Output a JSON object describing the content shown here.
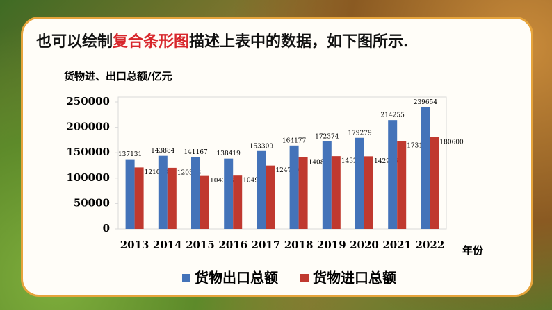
{
  "heading": {
    "parts": [
      "也可以绘制",
      "复合条形图",
      "描述上表中的数据，如下图所示."
    ]
  },
  "chart_data": {
    "type": "bar",
    "y_label": "货物进、出口总额/亿元",
    "x_label": "年份",
    "categories": [
      "2013",
      "2014",
      "2015",
      "2016",
      "2017",
      "2018",
      "2019",
      "2020",
      "2021",
      "2022"
    ],
    "series": [
      {
        "name": "货物出口总额",
        "color": "#4473b9",
        "values": [
          137131,
          143884,
          141167,
          138419,
          153309,
          164177,
          172374,
          179279,
          214255,
          239654
        ]
      },
      {
        "name": "货物进口总额",
        "color": "#c0392f",
        "values": [
          121038,
          120358,
          104336,
          104967,
          124790,
          140881,
          143254,
          142936,
          173159,
          180600
        ]
      }
    ],
    "ylim": [
      0,
      250000
    ],
    "yticks": [
      0,
      50000,
      100000,
      150000,
      200000,
      250000
    ],
    "legend": "bottom"
  }
}
